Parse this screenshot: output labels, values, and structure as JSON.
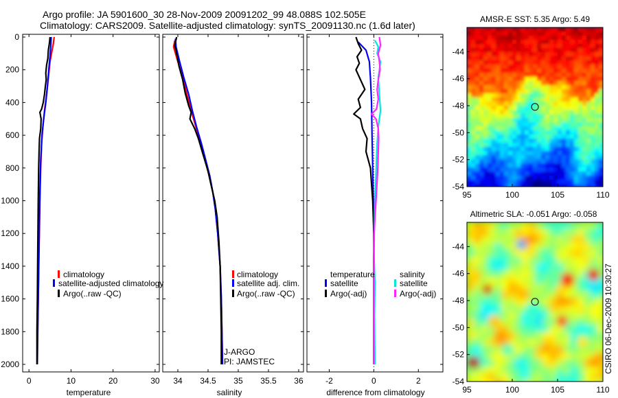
{
  "header": {
    "line1": "Argo profile: JA 5901600_30 28-Nov-2009 20091202_99 48.088S 102.505E",
    "line2": "Climatology: CARS2009. Satellite-adjusted climatology: synTS_20091130.nc (1.6d later)"
  },
  "footer": {
    "credit": "CSIRO 06-Dec-2009 10:30:27"
  },
  "colors": {
    "clim": "#ff0000",
    "sat": "#0000ff",
    "argo": "#000000",
    "cyan": "#00e5e5",
    "magenta": "#ff22ff"
  },
  "chart_data": [
    {
      "type": "line",
      "name": "temperature",
      "xlabel": "temperature",
      "xlim": [
        -1.5,
        31
      ],
      "ylim": [
        2050,
        -5
      ],
      "xticks": [
        "0",
        "10",
        "20",
        "30"
      ],
      "xtick_values": [
        0,
        10,
        20,
        30
      ],
      "yticks": [
        "0",
        "200",
        "400",
        "600",
        "800",
        "1000",
        "1200",
        "1400",
        "1600",
        "1800",
        "2000"
      ],
      "ytick_values": [
        0,
        200,
        400,
        600,
        800,
        1000,
        1200,
        1400,
        1600,
        1800,
        2000
      ],
      "series": [
        {
          "name": "climatology",
          "color": "#ff0000",
          "points": [
            [
              6.0,
              0
            ],
            [
              5.8,
              40
            ],
            [
              5.5,
              80
            ],
            [
              5.0,
              150
            ],
            [
              4.6,
              250
            ],
            [
              4.2,
              350
            ],
            [
              3.7,
              450
            ],
            [
              3.3,
              550
            ],
            [
              3.0,
              650
            ],
            [
              2.8,
              800
            ],
            [
              2.6,
              1000
            ],
            [
              2.4,
              1300
            ],
            [
              2.2,
              1600
            ],
            [
              2.0,
              1900
            ],
            [
              2.0,
              2000
            ]
          ]
        },
        {
          "name": "satellite-adjusted climatology",
          "color": "#0000ff",
          "points": [
            [
              5.3,
              0
            ],
            [
              5.2,
              50
            ],
            [
              5.0,
              120
            ],
            [
              4.7,
              200
            ],
            [
              4.4,
              300
            ],
            [
              4.0,
              400
            ],
            [
              3.5,
              500
            ],
            [
              3.1,
              600
            ],
            [
              2.8,
              750
            ],
            [
              2.6,
              950
            ],
            [
              2.4,
              1250
            ],
            [
              2.2,
              1600
            ],
            [
              2.0,
              2000
            ]
          ]
        },
        {
          "name": "Argo(..raw -QC)",
          "color": "#000000",
          "points": [
            [
              5.0,
              0
            ],
            [
              4.9,
              30
            ],
            [
              4.6,
              80
            ],
            [
              4.5,
              130
            ],
            [
              4.2,
              170
            ],
            [
              4.0,
              220
            ],
            [
              4.1,
              260
            ],
            [
              3.9,
              300
            ],
            [
              3.7,
              350
            ],
            [
              3.4,
              400
            ],
            [
              3.0,
              440
            ],
            [
              2.6,
              460
            ],
            [
              2.9,
              500
            ],
            [
              2.8,
              560
            ],
            [
              2.5,
              620
            ],
            [
              2.4,
              700
            ],
            [
              2.3,
              800
            ],
            [
              2.2,
              1000
            ],
            [
              2.1,
              1300
            ],
            [
              2.0,
              1600
            ],
            [
              1.9,
              1800
            ],
            [
              1.9,
              2000
            ]
          ]
        }
      ],
      "legend": {
        "position": "bottom-right",
        "labels": [
          "climatology",
          "satellite-adjusted climatology",
          "Argo(..raw -QC)"
        ]
      }
    },
    {
      "type": "line",
      "name": "salinity",
      "xlabel": "salinity",
      "xlim": [
        33.75,
        36.08
      ],
      "ylim": [
        2050,
        -5
      ],
      "xticks": [
        "34",
        "34.5",
        "35",
        "35.5",
        "36"
      ],
      "xtick_values": [
        34,
        34.5,
        35,
        35.5,
        36
      ],
      "series": [
        {
          "name": "climatology",
          "color": "#ff0000",
          "points": [
            [
              33.95,
              20
            ],
            [
              33.93,
              60
            ],
            [
              34.0,
              150
            ],
            [
              34.08,
              250
            ],
            [
              34.15,
              350
            ],
            [
              34.22,
              450
            ],
            [
              34.3,
              550
            ],
            [
              34.38,
              650
            ],
            [
              34.45,
              750
            ],
            [
              34.52,
              850
            ],
            [
              34.58,
              950
            ],
            [
              34.62,
              1050
            ],
            [
              34.66,
              1200
            ],
            [
              34.7,
              1400
            ],
            [
              34.72,
              1600
            ],
            [
              34.73,
              1800
            ],
            [
              34.74,
              2000
            ]
          ]
        },
        {
          "name": "satellite adj. clim.",
          "color": "#0000ff",
          "points": [
            [
              33.96,
              10
            ],
            [
              33.97,
              60
            ],
            [
              34.03,
              150
            ],
            [
              34.1,
              250
            ],
            [
              34.18,
              350
            ],
            [
              34.24,
              450
            ],
            [
              34.31,
              550
            ],
            [
              34.39,
              650
            ],
            [
              34.46,
              750
            ],
            [
              34.53,
              850
            ],
            [
              34.58,
              950
            ],
            [
              34.62,
              1050
            ],
            [
              34.66,
              1200
            ],
            [
              34.7,
              1400
            ],
            [
              34.72,
              1600
            ],
            [
              34.73,
              1800
            ],
            [
              34.74,
              2000
            ]
          ]
        },
        {
          "name": "Argo(..raw -QC)",
          "color": "#000000",
          "points": [
            [
              33.98,
              0
            ],
            [
              33.95,
              50
            ],
            [
              33.98,
              100
            ],
            [
              34.02,
              180
            ],
            [
              34.08,
              260
            ],
            [
              34.12,
              340
            ],
            [
              34.18,
              420
            ],
            [
              34.22,
              460
            ],
            [
              34.2,
              500
            ],
            [
              34.28,
              560
            ],
            [
              34.34,
              620
            ],
            [
              34.42,
              720
            ],
            [
              34.5,
              820
            ],
            [
              34.56,
              920
            ],
            [
              34.61,
              1000
            ],
            [
              34.65,
              1100
            ],
            [
              34.68,
              1250
            ],
            [
              34.7,
              1400
            ],
            [
              34.71,
              1600
            ],
            [
              34.72,
              1800
            ],
            [
              34.72,
              2000
            ]
          ]
        }
      ],
      "legend": {
        "position": "bottom-right",
        "labels": [
          "climatology",
          "satellite adj. clim.",
          "Argo(..raw -QC)"
        ]
      },
      "annotations": [
        "J-ARGO",
        "PI: JAMSTEC"
      ]
    },
    {
      "type": "line",
      "name": "difference",
      "xlabel": "difference from climatology",
      "xlim": [
        -3.0,
        3.1
      ],
      "ylim": [
        2050,
        -5
      ],
      "xticks": [
        "-2",
        "0",
        "2"
      ],
      "xtick_values": [
        -2,
        0,
        2
      ],
      "series": [
        {
          "name": "temperature satellite",
          "color": "#0000ff",
          "points": [
            [
              -0.7,
              30
            ],
            [
              -0.35,
              80
            ],
            [
              -0.2,
              150
            ],
            [
              -0.15,
              250
            ],
            [
              -0.1,
              400
            ],
            [
              -0.08,
              600
            ],
            [
              -0.05,
              800
            ],
            [
              -0.02,
              1000
            ],
            [
              0.0,
              1200
            ],
            [
              0.0,
              2000
            ]
          ]
        },
        {
          "name": "temperature Argo(-adj)",
          "color": "#000000",
          "points": [
            [
              -0.8,
              0
            ],
            [
              -0.7,
              40
            ],
            [
              -0.55,
              80
            ],
            [
              -0.75,
              120
            ],
            [
              -0.65,
              160
            ],
            [
              -0.8,
              200
            ],
            [
              -0.6,
              260
            ],
            [
              -0.4,
              320
            ],
            [
              -0.7,
              380
            ],
            [
              -0.6,
              430
            ],
            [
              -0.9,
              470
            ],
            [
              -0.6,
              500
            ],
            [
              -0.5,
              560
            ],
            [
              -0.3,
              620
            ],
            [
              -0.35,
              700
            ],
            [
              -0.15,
              800
            ],
            [
              -0.1,
              900
            ],
            [
              -0.05,
              1000
            ],
            [
              0.0,
              1200
            ],
            [
              0.0,
              1500
            ],
            [
              0.0,
              2000
            ]
          ]
        },
        {
          "name": "salinity satellite",
          "color": "#00e5e5",
          "points": [
            [
              0.05,
              20
            ],
            [
              0.2,
              60
            ],
            [
              0.15,
              100
            ],
            [
              0.3,
              150
            ],
            [
              0.2,
              250
            ],
            [
              0.25,
              350
            ],
            [
              0.3,
              450
            ],
            [
              0.2,
              550
            ],
            [
              0.15,
              650
            ],
            [
              0.12,
              750
            ],
            [
              0.08,
              900
            ],
            [
              0.05,
              1000
            ],
            [
              0.03,
              1100
            ],
            [
              0.0,
              1300
            ],
            [
              0.05,
              1500
            ],
            [
              0.03,
              1700
            ],
            [
              0.05,
              2000
            ]
          ]
        },
        {
          "name": "salinity Argo(-adj)",
          "color": "#ff22ff",
          "points": [
            [
              0.25,
              0
            ],
            [
              0.3,
              50
            ],
            [
              0.2,
              100
            ],
            [
              0.25,
              150
            ],
            [
              0.28,
              200
            ],
            [
              0.2,
              260
            ],
            [
              0.15,
              320
            ],
            [
              0.2,
              380
            ],
            [
              0.12,
              440
            ],
            [
              -0.1,
              470
            ],
            [
              0.1,
              500
            ],
            [
              0.2,
              560
            ],
            [
              0.22,
              620
            ],
            [
              0.2,
              700
            ],
            [
              0.18,
              800
            ],
            [
              0.14,
              900
            ],
            [
              0.1,
              1000
            ],
            [
              0.05,
              1100
            ],
            [
              0.02,
              1200
            ],
            [
              0.0,
              1500
            ],
            [
              0.0,
              2000
            ]
          ]
        }
      ],
      "legend": {
        "position": "bottom",
        "headers": [
          "temperature",
          "salinity"
        ],
        "labels": [
          "satellite",
          "Argo(-adj)",
          "satellite",
          "Argo(-adj)"
        ]
      }
    },
    {
      "type": "heatmap",
      "name": "sst-map",
      "title": "AMSR-E SST: 5.35 Argo: 5.49",
      "xlim": [
        95,
        110
      ],
      "ylim": [
        -54,
        -42.2
      ],
      "xticks": [
        "95",
        "100",
        "105",
        "110"
      ],
      "xtick_values": [
        95,
        100,
        105,
        110
      ],
      "yticks": [
        "-44",
        "-46",
        "-48",
        "-50",
        "-52",
        "-54"
      ],
      "ytick_values": [
        -44,
        -46,
        -48,
        -50,
        -52,
        -54
      ],
      "marker": {
        "lon": 102.505,
        "lat": -48.088
      }
    },
    {
      "type": "heatmap",
      "name": "sla-map",
      "title": "Altimetric SLA: -0.051 Argo: -0.058",
      "xlim": [
        95,
        110
      ],
      "ylim": [
        -54,
        -42.2
      ],
      "xticks": [
        "95",
        "100",
        "105",
        "110"
      ],
      "xtick_values": [
        95,
        100,
        105,
        110
      ],
      "yticks": [
        "-44",
        "-46",
        "-48",
        "-50",
        "-52",
        "-54"
      ],
      "ytick_values": [
        -44,
        -46,
        -48,
        -50,
        -52,
        -54
      ],
      "marker": {
        "lon": 102.505,
        "lat": -48.088
      }
    }
  ]
}
